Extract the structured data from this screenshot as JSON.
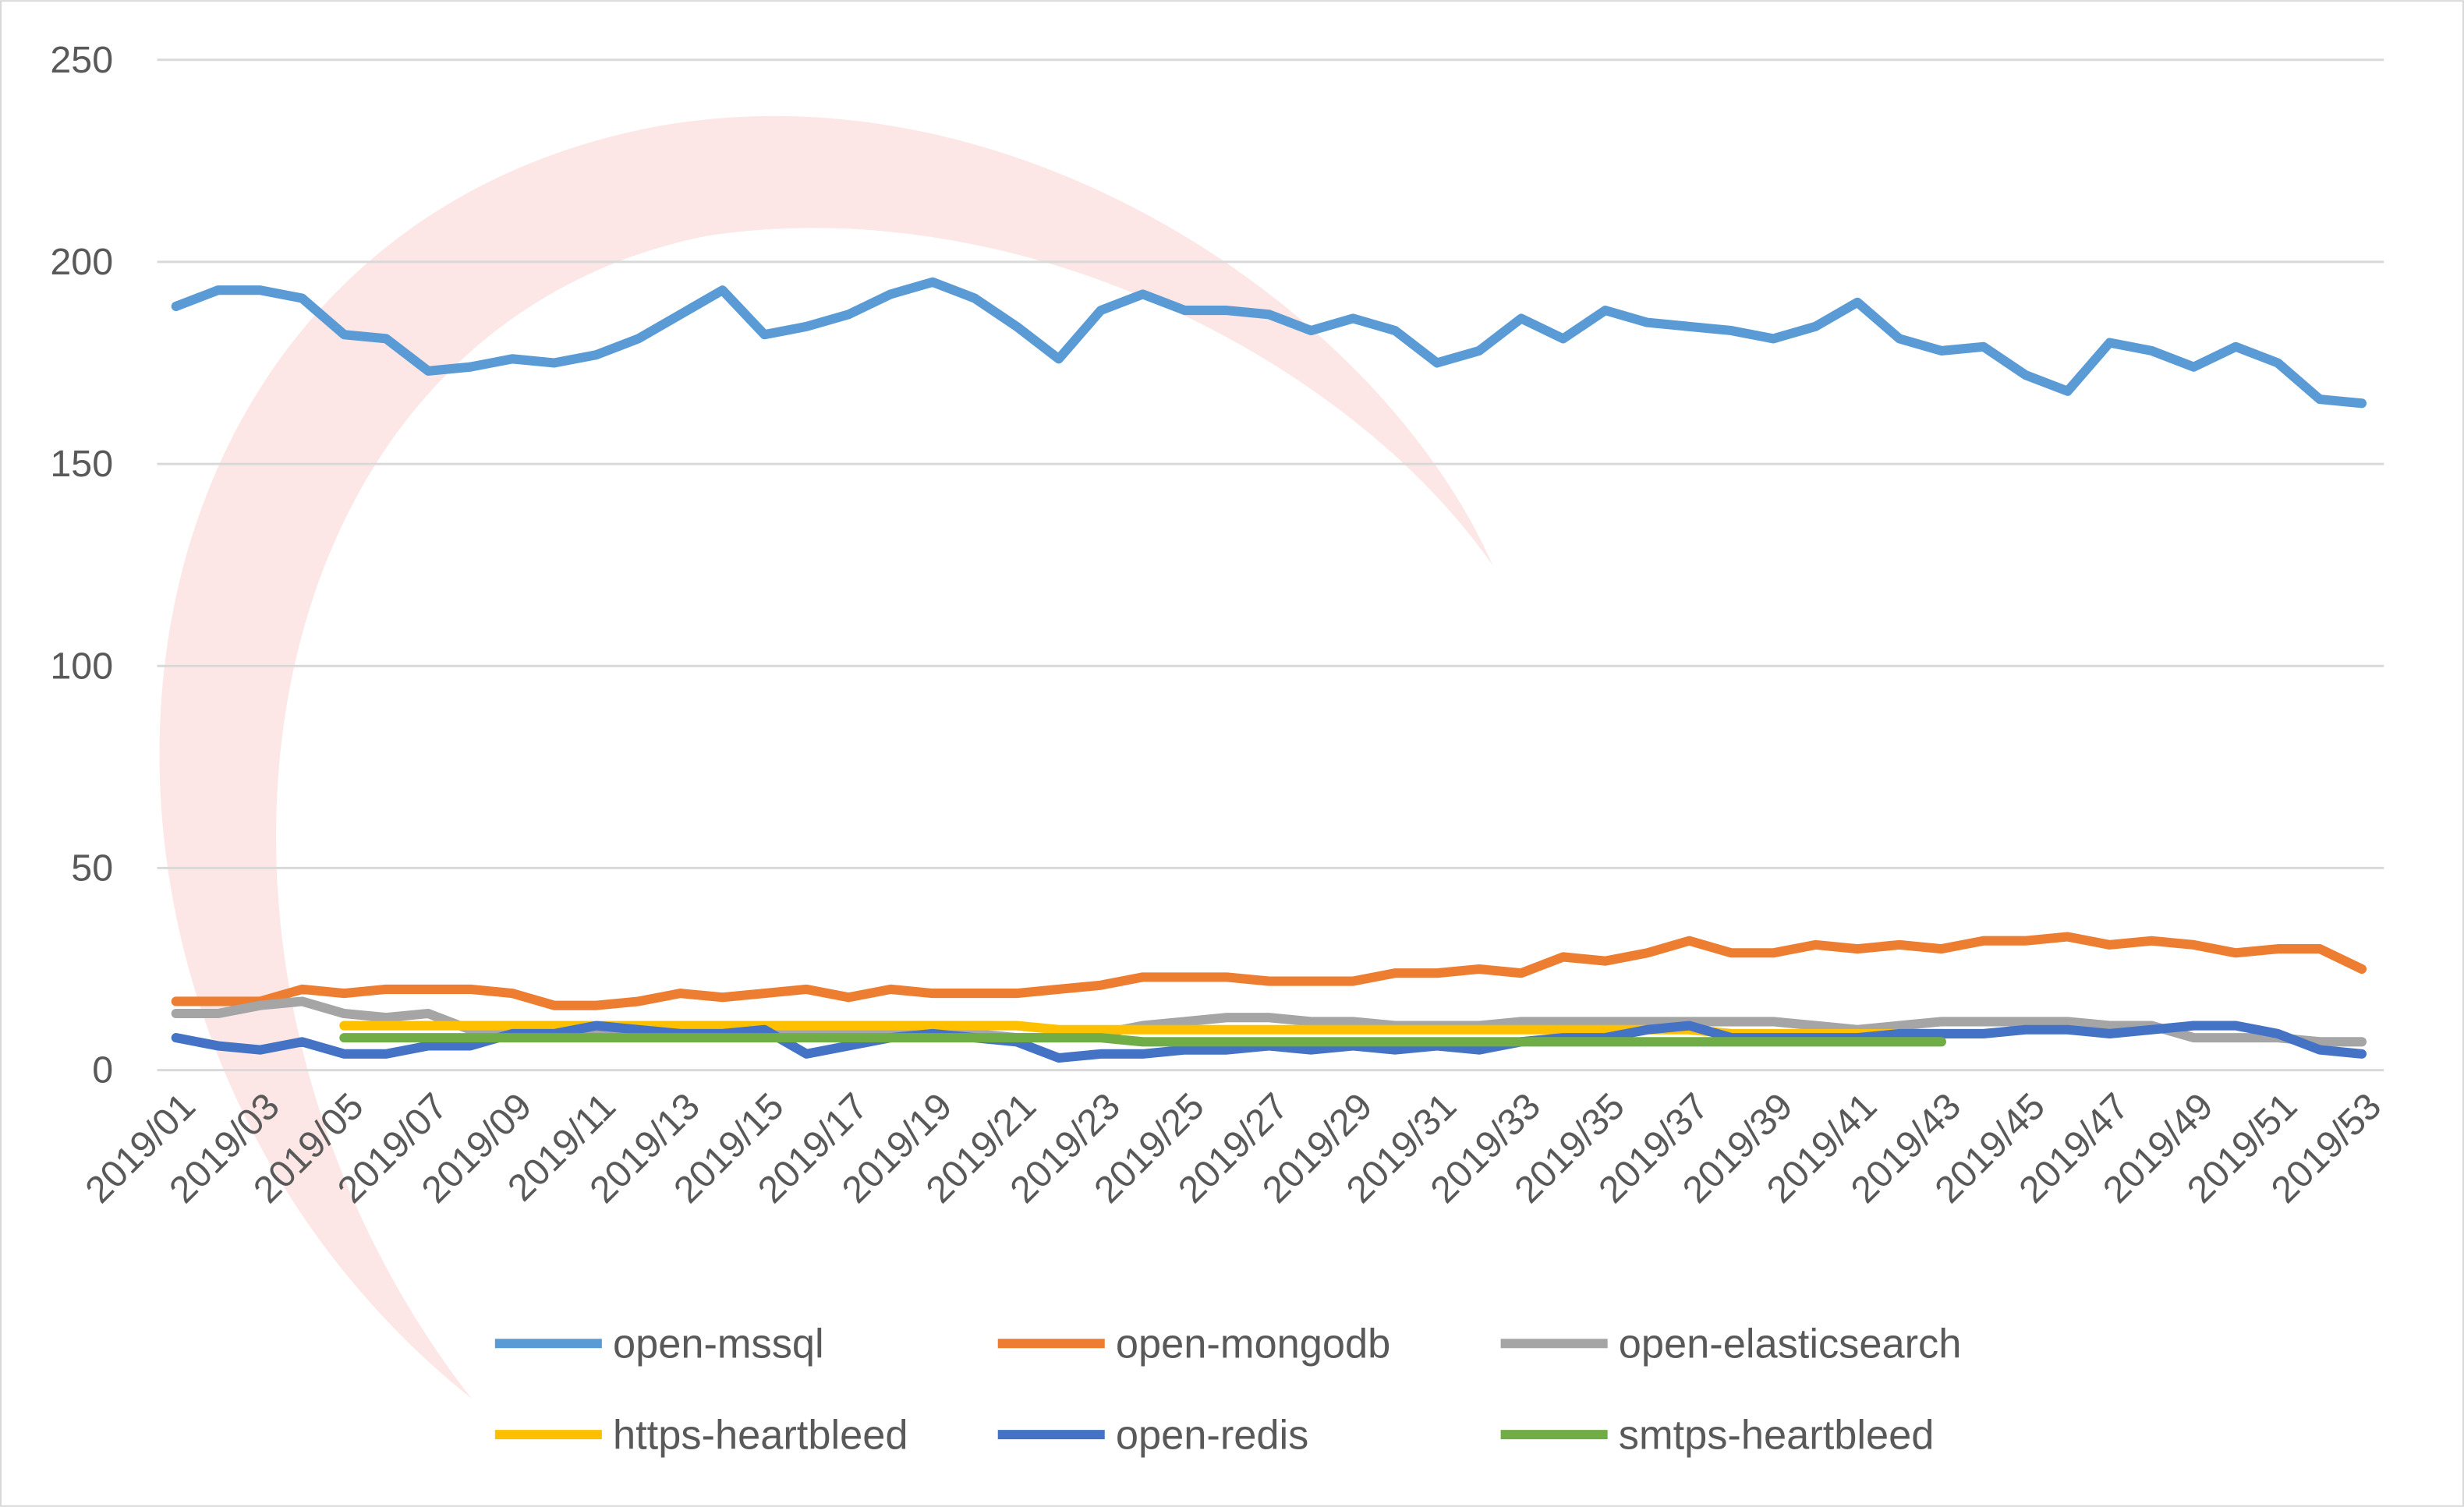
{
  "chart_data": {
    "type": "line",
    "categories": [
      "2019/01",
      null,
      "2019/03",
      null,
      "2019/05",
      null,
      "2019/07",
      null,
      "2019/09",
      null,
      "2019/11",
      null,
      "2019/13",
      null,
      "2019/15",
      null,
      "2019/17",
      null,
      "2019/19",
      null,
      "2019/21",
      null,
      "2019/23",
      null,
      "2019/25",
      null,
      "2019/27",
      null,
      "2019/29",
      null,
      "2019/31",
      null,
      "2019/33",
      null,
      "2019/35",
      null,
      "2019/37",
      null,
      "2019/39",
      null,
      "2019/41",
      null,
      "2019/43",
      null,
      "2019/45",
      null,
      "2019/47",
      null,
      "2019/49",
      null,
      "2019/51",
      null,
      "2019/53"
    ],
    "series": [
      {
        "name": "open-mssql",
        "color": "#5b9bd5",
        "values": [
          189,
          193,
          193,
          191,
          182,
          181,
          173,
          174,
          176,
          175,
          177,
          181,
          187,
          193,
          182,
          184,
          187,
          192,
          195,
          191,
          184,
          176,
          188,
          192,
          188,
          188,
          187,
          183,
          186,
          183,
          175,
          178,
          186,
          181,
          188,
          185,
          184,
          183,
          181,
          184,
          190,
          181,
          178,
          179,
          172,
          168,
          180,
          178,
          174,
          179,
          175,
          166,
          165
        ]
      },
      {
        "name": "open-mongodb",
        "color": "#ed7d31",
        "values": [
          17,
          17,
          17,
          20,
          19,
          20,
          20,
          20,
          19,
          16,
          16,
          17,
          19,
          18,
          19,
          20,
          18,
          20,
          19,
          19,
          19,
          20,
          21,
          23,
          23,
          23,
          22,
          22,
          22,
          24,
          24,
          25,
          24,
          28,
          27,
          29,
          32,
          29,
          29,
          31,
          30,
          31,
          30,
          32,
          32,
          33,
          31,
          32,
          31,
          29,
          30,
          30,
          25
        ]
      },
      {
        "name": "open-elasticsearch",
        "color": "#a5a5a5",
        "values": [
          14,
          14,
          16,
          17,
          14,
          13,
          14,
          10,
          10,
          10,
          10,
          10,
          10,
          9,
          9,
          9,
          9,
          9,
          9,
          9,
          8,
          8,
          9,
          11,
          12,
          13,
          13,
          12,
          12,
          11,
          11,
          11,
          12,
          12,
          12,
          12,
          12,
          12,
          12,
          11,
          10,
          11,
          12,
          12,
          12,
          12,
          11,
          11,
          8,
          8,
          8,
          7,
          7
        ]
      },
      {
        "name": "https-heartbleed",
        "color": "#ffc000",
        "values": [
          null,
          null,
          null,
          null,
          11,
          11,
          11,
          11,
          11,
          11,
          11,
          11,
          11,
          11,
          11,
          11,
          11,
          11,
          11,
          11,
          11,
          10,
          10,
          10,
          10,
          10,
          10,
          10,
          10,
          10,
          10,
          10,
          10,
          10,
          10,
          10,
          10,
          9,
          9,
          9,
          9,
          9,
          9,
          null,
          null,
          null,
          null,
          null,
          null,
          null,
          null,
          null,
          null
        ]
      },
      {
        "name": "open-redis",
        "color": "#4472c4",
        "values": [
          8,
          6,
          5,
          7,
          4,
          4,
          6,
          6,
          9,
          9,
          11,
          10,
          9,
          9,
          10,
          4,
          6,
          8,
          9,
          8,
          7,
          3,
          4,
          4,
          5,
          5,
          6,
          5,
          6,
          5,
          6,
          5,
          7,
          8,
          8,
          10,
          11,
          8,
          8,
          8,
          8,
          9,
          9,
          9,
          10,
          10,
          9,
          10,
          11,
          11,
          9,
          5,
          4
        ]
      },
      {
        "name": "smtps-heartbleed",
        "color": "#70ad47",
        "values": [
          null,
          null,
          null,
          null,
          8,
          8,
          8,
          8,
          8,
          8,
          8,
          8,
          8,
          8,
          8,
          8,
          8,
          8,
          8,
          8,
          8,
          8,
          8,
          7,
          7,
          7,
          7,
          7,
          7,
          7,
          7,
          7,
          7,
          7,
          7,
          7,
          7,
          7,
          7,
          7,
          7,
          7,
          7,
          null,
          null,
          null,
          null,
          null,
          null,
          null,
          null,
          null,
          null
        ]
      }
    ],
    "ylim": [
      0,
      250
    ],
    "yticks": [
      0,
      50,
      100,
      150,
      200,
      250
    ],
    "grid": true,
    "legend": "bottom"
  }
}
